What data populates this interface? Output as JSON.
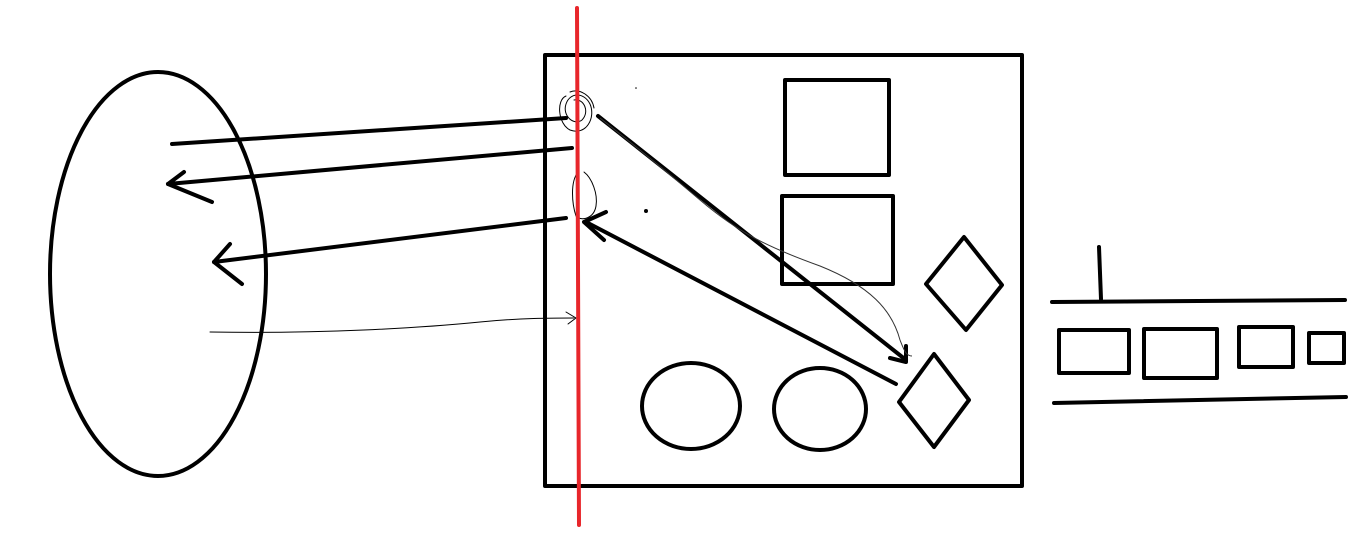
{
  "diagram": {
    "style": "hand-drawn sketch",
    "colors": {
      "background": "#ffffff",
      "ink": "#000000",
      "divider": "#e8262b"
    },
    "elements": [
      "ellipse",
      "square-box",
      "vertical-divider-line",
      "rectangle",
      "rectangle",
      "diamond",
      "diamond",
      "circle",
      "circle",
      "horizontal-strip",
      "arrow",
      "arrow",
      "arrow",
      "arrow",
      "arrow",
      "arrow"
    ]
  }
}
